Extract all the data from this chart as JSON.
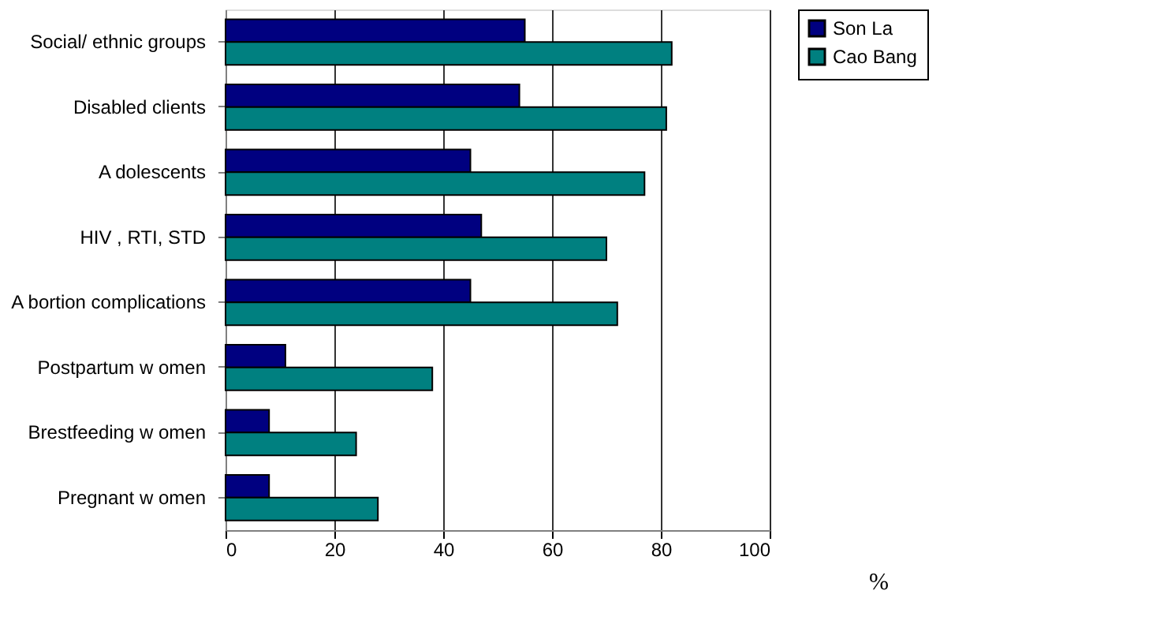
{
  "chart_data": {
    "type": "bar",
    "orientation": "horizontal",
    "xlabel": "%",
    "categories": [
      "Social/ ethnic groups",
      "Disabled clients",
      "A dolescents",
      "HIV , RTI, STD",
      "A bortion complications",
      "Postpartum w omen",
      "Brestfeeding w omen",
      "Pregnant w omen"
    ],
    "series": [
      {
        "name": "Son La",
        "color": "#000080",
        "values": [
          55,
          54,
          45,
          47,
          45,
          11,
          8,
          8
        ]
      },
      {
        "name": "Cao Bang",
        "color": "#008080",
        "values": [
          82,
          81,
          77,
          70,
          72,
          38,
          24,
          28
        ]
      }
    ],
    "xlim": [
      0,
      100
    ],
    "xticks": [
      0,
      20,
      40,
      60,
      80,
      100
    ],
    "grid": "x",
    "legend": "right"
  }
}
